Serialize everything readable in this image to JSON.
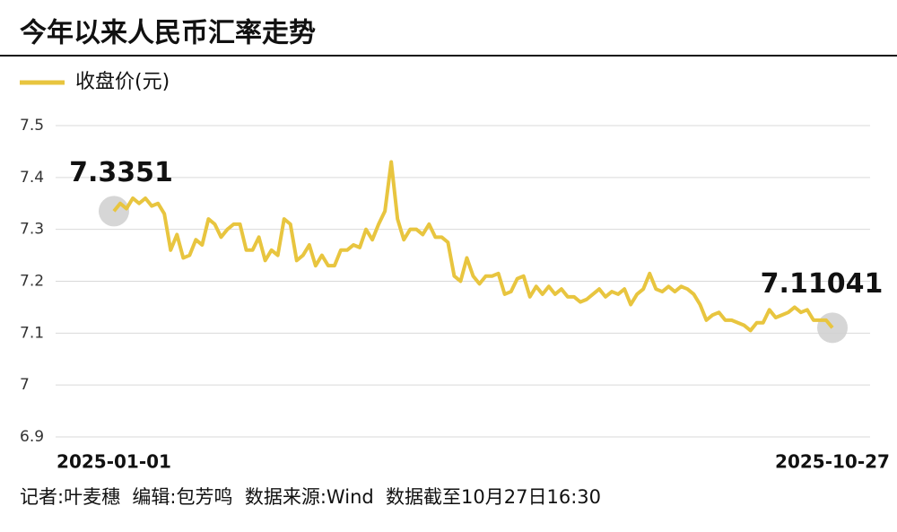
{
  "chart_data": {
    "type": "line",
    "title": "今年以来人民币汇率走势",
    "footer": "记者:叶麦穗  编辑:包芳鸣  数据来源:Wind  数据截至10月27日16:30",
    "categories": [
      "2025-01-01",
      null,
      null,
      null,
      null,
      null,
      null,
      null,
      null,
      null,
      null,
      null,
      null,
      null,
      null,
      null,
      null,
      null,
      null,
      null,
      null,
      null,
      null,
      null,
      null,
      null,
      null,
      null,
      null,
      null,
      null,
      null,
      null,
      null,
      null,
      null,
      null,
      null,
      null,
      null,
      null,
      null,
      null,
      null,
      null,
      null,
      null,
      null,
      null,
      null,
      null,
      null,
      null,
      null,
      null,
      null,
      null,
      null,
      null,
      null,
      null,
      null,
      null,
      null,
      null,
      null,
      null,
      null,
      null,
      null,
      null,
      null,
      null,
      null,
      null,
      null,
      null,
      null,
      null,
      null,
      null,
      null,
      null,
      null,
      null,
      null,
      null,
      null,
      null,
      null,
      null,
      null,
      null,
      null,
      null,
      null,
      null,
      null,
      null,
      null,
      null,
      null,
      null,
      null,
      null,
      null,
      null,
      null,
      null,
      null,
      null,
      null,
      null,
      null,
      "2025-10-27"
    ],
    "series": [
      {
        "name": "收盘价(元)",
        "color": "#e8c53f",
        "values": [
          7.3351,
          7.35,
          7.34,
          7.36,
          7.35,
          7.36,
          7.345,
          7.35,
          7.33,
          7.26,
          7.29,
          7.245,
          7.25,
          7.28,
          7.27,
          7.32,
          7.31,
          7.285,
          7.3,
          7.31,
          7.31,
          7.26,
          7.26,
          7.285,
          7.24,
          7.26,
          7.25,
          7.32,
          7.31,
          7.24,
          7.25,
          7.27,
          7.23,
          7.25,
          7.23,
          7.23,
          7.26,
          7.26,
          7.27,
          7.265,
          7.3,
          7.28,
          7.31,
          7.335,
          7.43,
          7.32,
          7.28,
          7.3,
          7.3,
          7.29,
          7.31,
          7.285,
          7.285,
          7.275,
          7.21,
          7.2,
          7.245,
          7.21,
          7.195,
          7.21,
          7.21,
          7.215,
          7.175,
          7.18,
          7.205,
          7.21,
          7.17,
          7.19,
          7.175,
          7.19,
          7.175,
          7.185,
          7.17,
          7.17,
          7.16,
          7.165,
          7.175,
          7.185,
          7.17,
          7.18,
          7.175,
          7.185,
          7.155,
          7.175,
          7.185,
          7.215,
          7.185,
          7.18,
          7.19,
          7.18,
          7.19,
          7.185,
          7.175,
          7.155,
          7.125,
          7.135,
          7.14,
          7.125,
          7.125,
          7.12,
          7.115,
          7.105,
          7.12,
          7.12,
          7.145,
          7.13,
          7.135,
          7.14,
          7.15,
          7.14,
          7.145,
          7.125,
          7.125,
          7.125,
          7.11041
        ]
      }
    ],
    "ylim": [
      6.9,
      7.5
    ],
    "yticks": [
      6.9,
      7,
      7.1,
      7.2,
      7.3,
      7.4,
      7.5
    ],
    "grid": true
  }
}
